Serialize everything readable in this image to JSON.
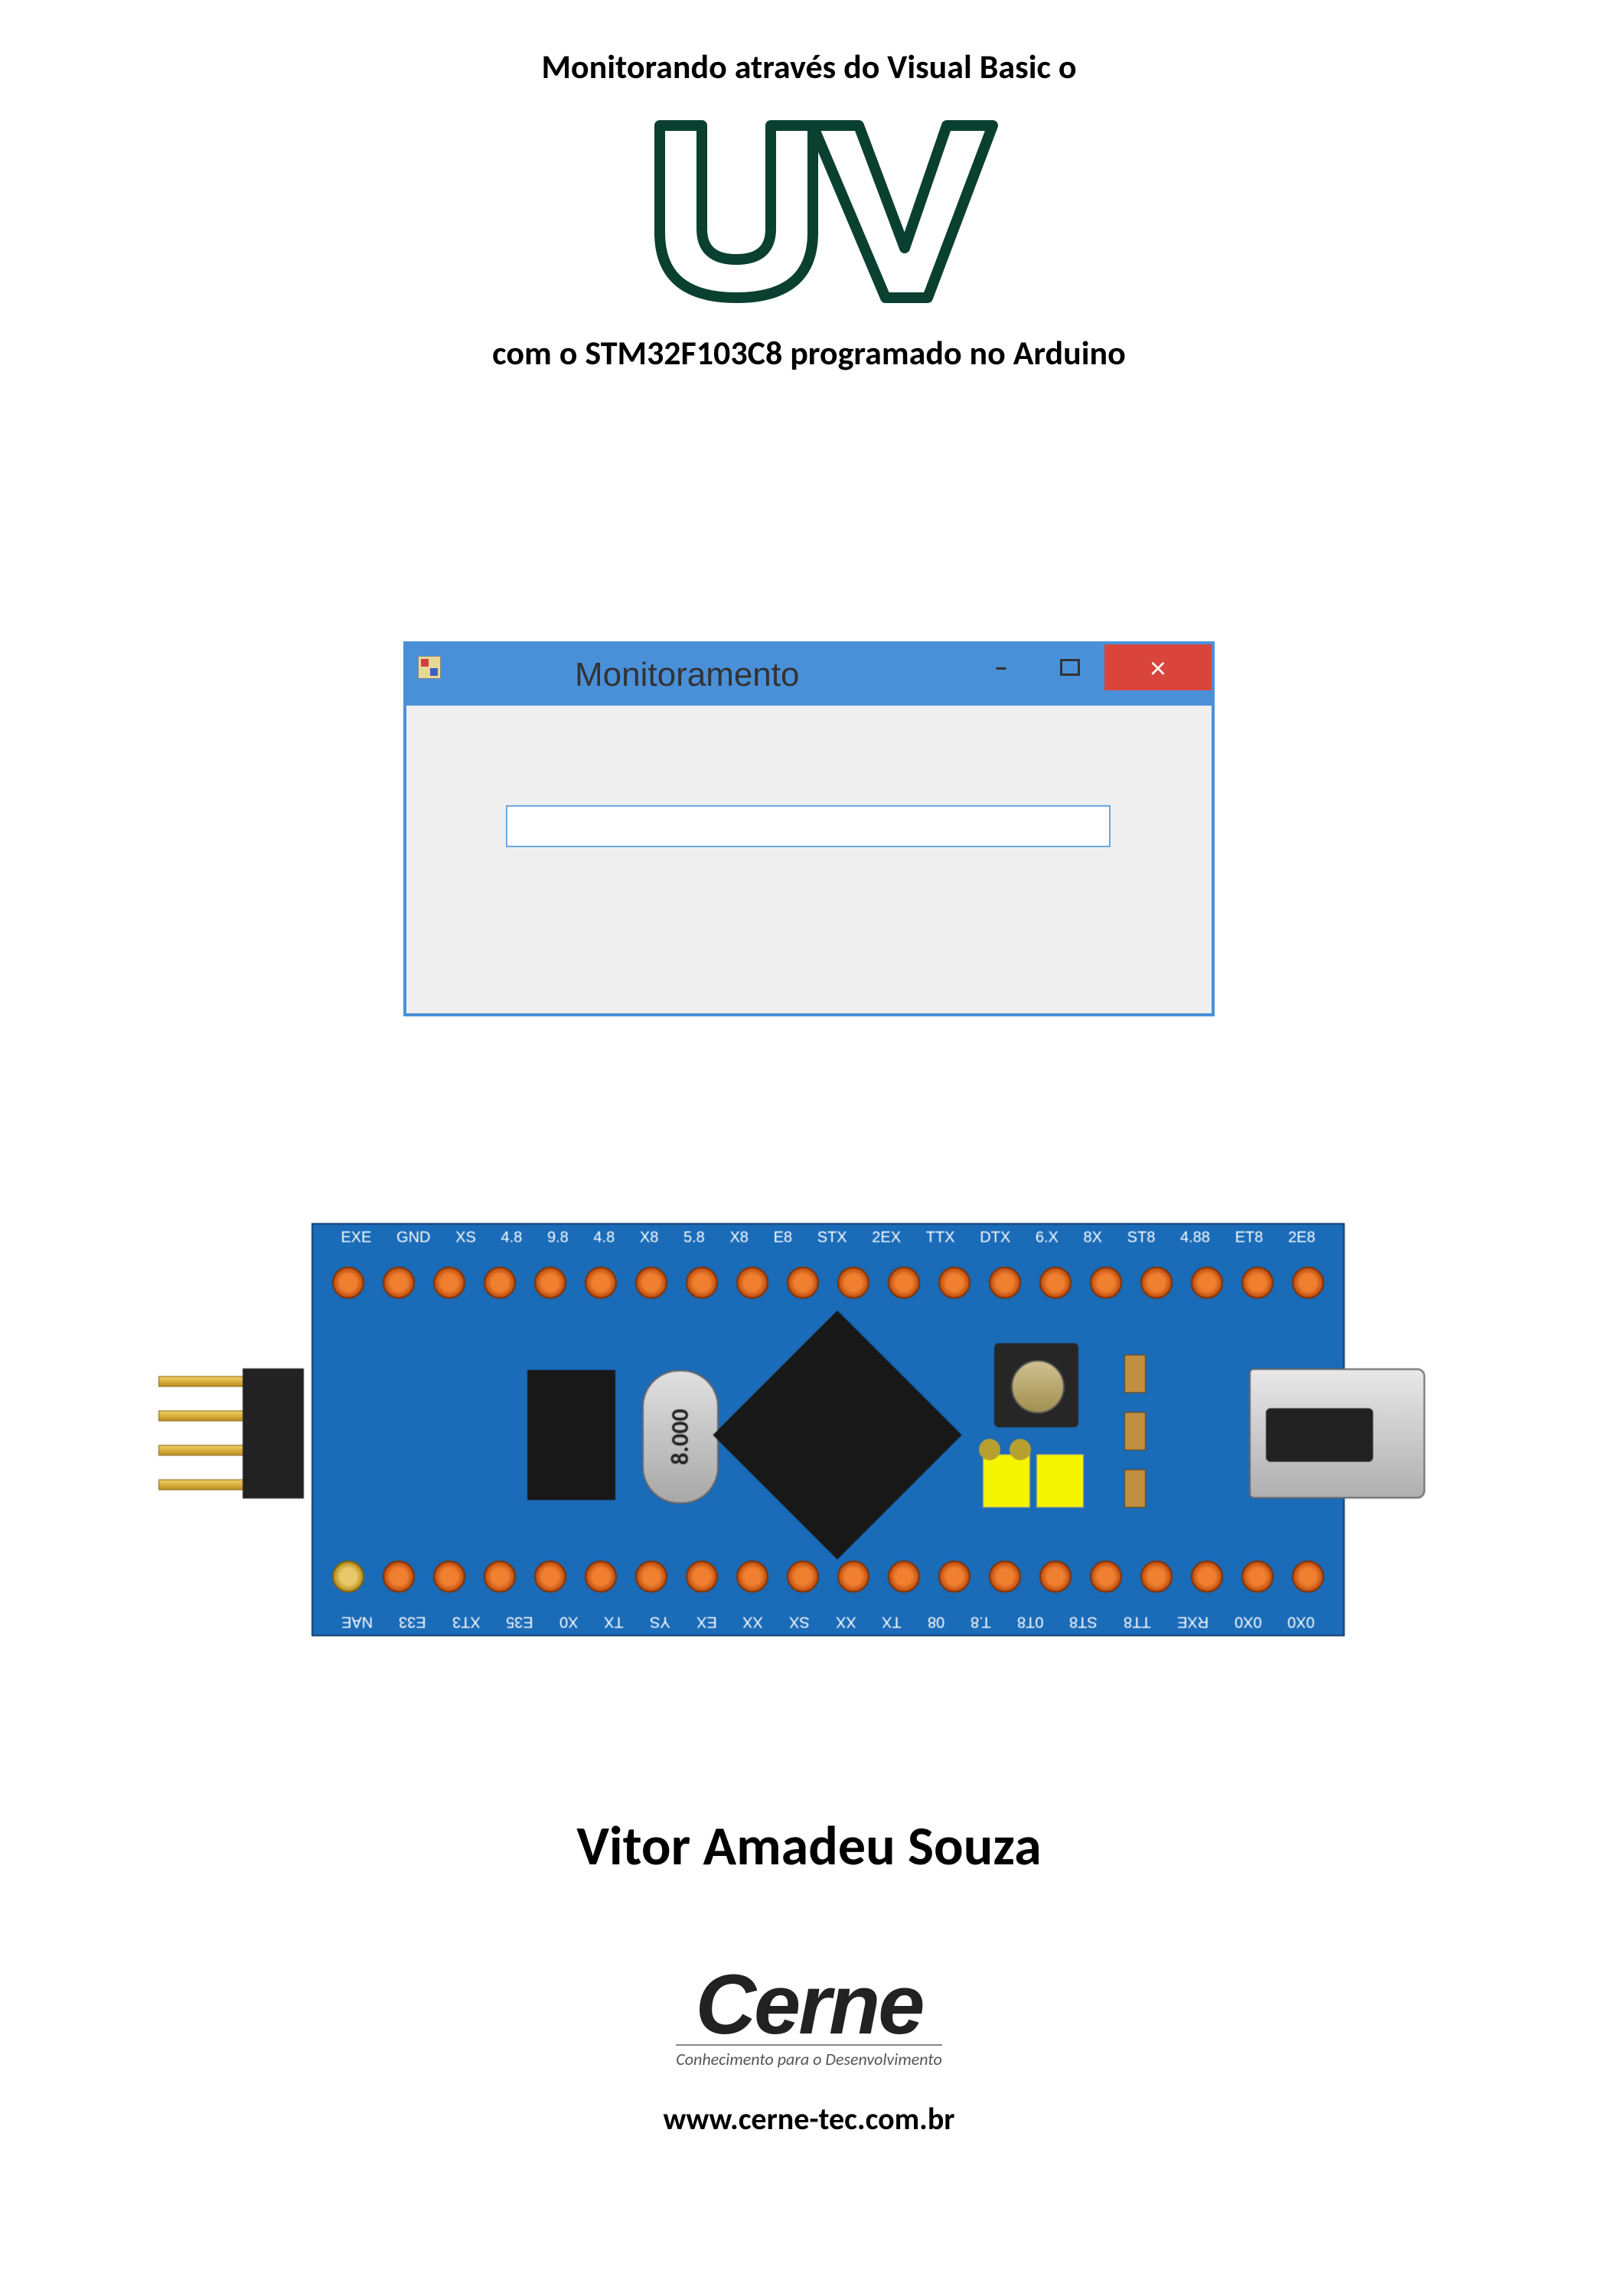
{
  "title": {
    "line1": "Monitorando através do Visual Basic o",
    "logo_text": "UV",
    "line2": "com o STM32F103C8 programado no Arduino",
    "logo_stroke": "#0a4030",
    "logo_fill": "#ffffff",
    "font_size_pt": 44
  },
  "vb_window": {
    "title": "Monitoramento",
    "titlebar_color": "#4a90d9",
    "body_color": "#efefef",
    "textbox_border": "#6aa8e0",
    "close_color": "#d9453a",
    "buttons": {
      "min": "–",
      "close": "×"
    }
  },
  "board": {
    "pcb_color": "#1a6bb8",
    "pad_color": "#f08030",
    "gold_pad_color": "#e8c868",
    "crystal_text": "8.000",
    "jumper_color": "#f5f500",
    "top_labels": [
      "EXE",
      "GND",
      "XS",
      "4.8",
      "9.8",
      "4.8",
      "X8",
      "5.8",
      "X8",
      "E8",
      "STX",
      "2EX",
      "TTX",
      "DTX",
      "6.X",
      "8X",
      "ST8",
      "4.88",
      "ET8",
      "2E8"
    ],
    "bottom_labels": [
      "NAE",
      "E33",
      "XT3",
      "E35",
      "X0",
      "TX",
      "YS",
      "EX",
      "XX",
      "SX",
      "XX",
      "TX",
      "08",
      "T.8",
      "0T8",
      "ST8",
      "TT8",
      "RXE",
      "0X0",
      "0X0"
    ]
  },
  "author": "Vitor Amadeu Souza",
  "publisher": {
    "name": "Cerne",
    "tagline": "Conhecimento para o Desenvolvimento",
    "url": "www.cerne-tec.com.br"
  }
}
